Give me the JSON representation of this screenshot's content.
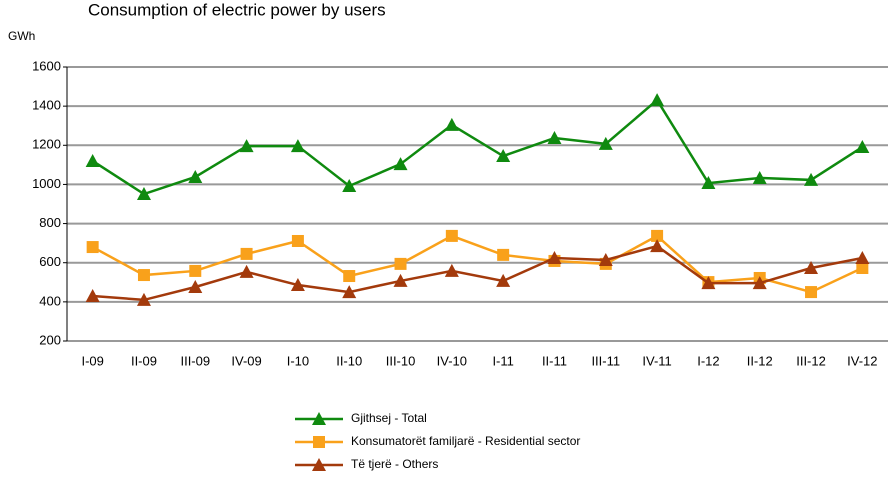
{
  "chart_data": {
    "type": "line",
    "title": "Consumption of electric power by users",
    "y_label": "GWh",
    "categories": [
      "I-09",
      "II-09",
      "III-09",
      "IV-09",
      "I-10",
      "II-10",
      "III-10",
      "IV-10",
      "I-11",
      "II-11",
      "III-11",
      "IV-11",
      "I-12",
      "II-12",
      "III-12",
      "IV-12"
    ],
    "series": [
      {
        "name": "Gjithsej - Total",
        "color": "#0f8a0f",
        "marker": "triangle",
        "values": [
          1120,
          951,
          1038,
          1196,
          1196,
          992,
          1104,
          1304,
          1145,
          1237,
          1207,
          1431,
          1007,
          1033,
          1023,
          1191
        ]
      },
      {
        "name": "Konsumatorët familjarë - Residential sector",
        "color": "#f9a11b",
        "marker": "square",
        "values": [
          680,
          537,
          558,
          645,
          711,
          532,
          594,
          737,
          640,
          609,
          594,
          737,
          501,
          522,
          450,
          573
        ]
      },
      {
        "name": "Të tjerë - Others",
        "color": "#a33a0c",
        "marker": "triangle",
        "values": [
          430,
          410,
          476,
          553,
          486,
          450,
          507,
          558,
          507,
          624,
          614,
          685,
          496,
          496,
          573,
          624
        ]
      }
    ],
    "ylim": [
      200,
      1600
    ],
    "yticks": [
      200,
      400,
      600,
      800,
      1000,
      1200,
      1400,
      1600
    ],
    "grid": true
  }
}
